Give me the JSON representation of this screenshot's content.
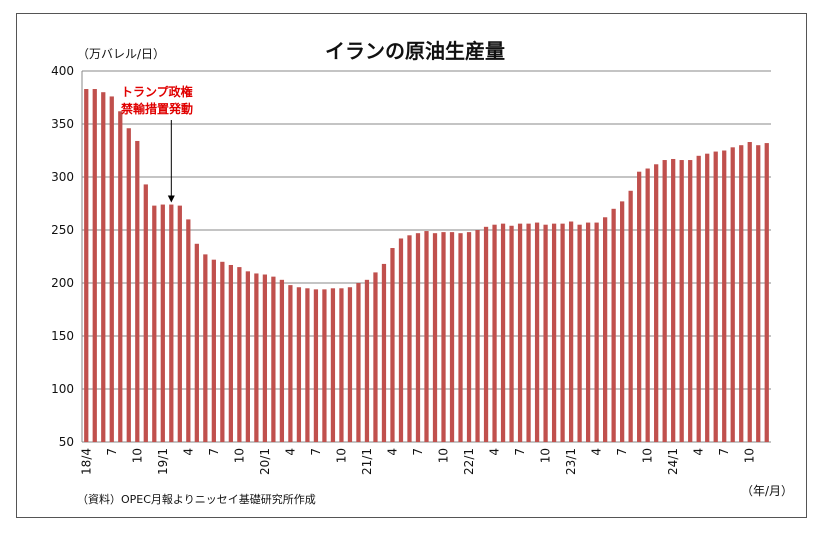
{
  "chart_data": {
    "type": "bar",
    "title": "イランの原油生産量",
    "ylabel": "（万バレル/日）",
    "xlabel": "（年/月）",
    "source_note": "（資料）OPEC月報よりニッセイ基礎研究所作成",
    "annotation": {
      "line1": "トランプ政権",
      "line2": "禁輸措置発動",
      "target_index": 10
    },
    "ylim": [
      50,
      400
    ],
    "yticks": [
      50,
      100,
      150,
      200,
      250,
      300,
      350,
      400
    ],
    "grid": true,
    "bar_color": "#c0504d",
    "grid_color": "#888888",
    "xtick_labels": [
      {
        "index": 0,
        "label": "18/4"
      },
      {
        "index": 3,
        "label": "7"
      },
      {
        "index": 6,
        "label": "10"
      },
      {
        "index": 9,
        "label": "19/1"
      },
      {
        "index": 12,
        "label": "4"
      },
      {
        "index": 15,
        "label": "7"
      },
      {
        "index": 18,
        "label": "10"
      },
      {
        "index": 21,
        "label": "20/1"
      },
      {
        "index": 24,
        "label": "4"
      },
      {
        "index": 27,
        "label": "7"
      },
      {
        "index": 30,
        "label": "10"
      },
      {
        "index": 33,
        "label": "21/1"
      },
      {
        "index": 36,
        "label": "4"
      },
      {
        "index": 39,
        "label": "7"
      },
      {
        "index": 42,
        "label": "10"
      },
      {
        "index": 45,
        "label": "22/1"
      },
      {
        "index": 48,
        "label": "4"
      },
      {
        "index": 51,
        "label": "7"
      },
      {
        "index": 54,
        "label": "10"
      },
      {
        "index": 57,
        "label": "23/1"
      },
      {
        "index": 60,
        "label": "4"
      },
      {
        "index": 63,
        "label": "7"
      },
      {
        "index": 66,
        "label": "10"
      },
      {
        "index": 69,
        "label": "24/1"
      },
      {
        "index": 72,
        "label": "4"
      },
      {
        "index": 75,
        "label": "7"
      },
      {
        "index": 78,
        "label": "10"
      }
    ],
    "values": [
      383,
      383,
      380,
      376,
      362,
      346,
      334,
      293,
      273,
      274,
      274,
      273,
      260,
      237,
      227,
      222,
      220,
      217,
      215,
      211,
      209,
      208,
      206,
      203,
      198,
      196,
      195,
      194,
      194,
      195,
      195,
      196,
      200,
      203,
      210,
      218,
      233,
      242,
      245,
      247,
      249,
      247,
      248,
      248,
      247,
      248,
      250,
      253,
      255,
      256,
      254,
      256,
      256,
      257,
      255,
      256,
      256,
      258,
      255,
      257,
      257,
      262,
      270,
      277,
      287,
      305,
      308,
      312,
      316,
      317,
      316,
      316,
      320,
      322,
      324,
      325,
      328,
      330,
      333,
      330,
      332
    ]
  }
}
